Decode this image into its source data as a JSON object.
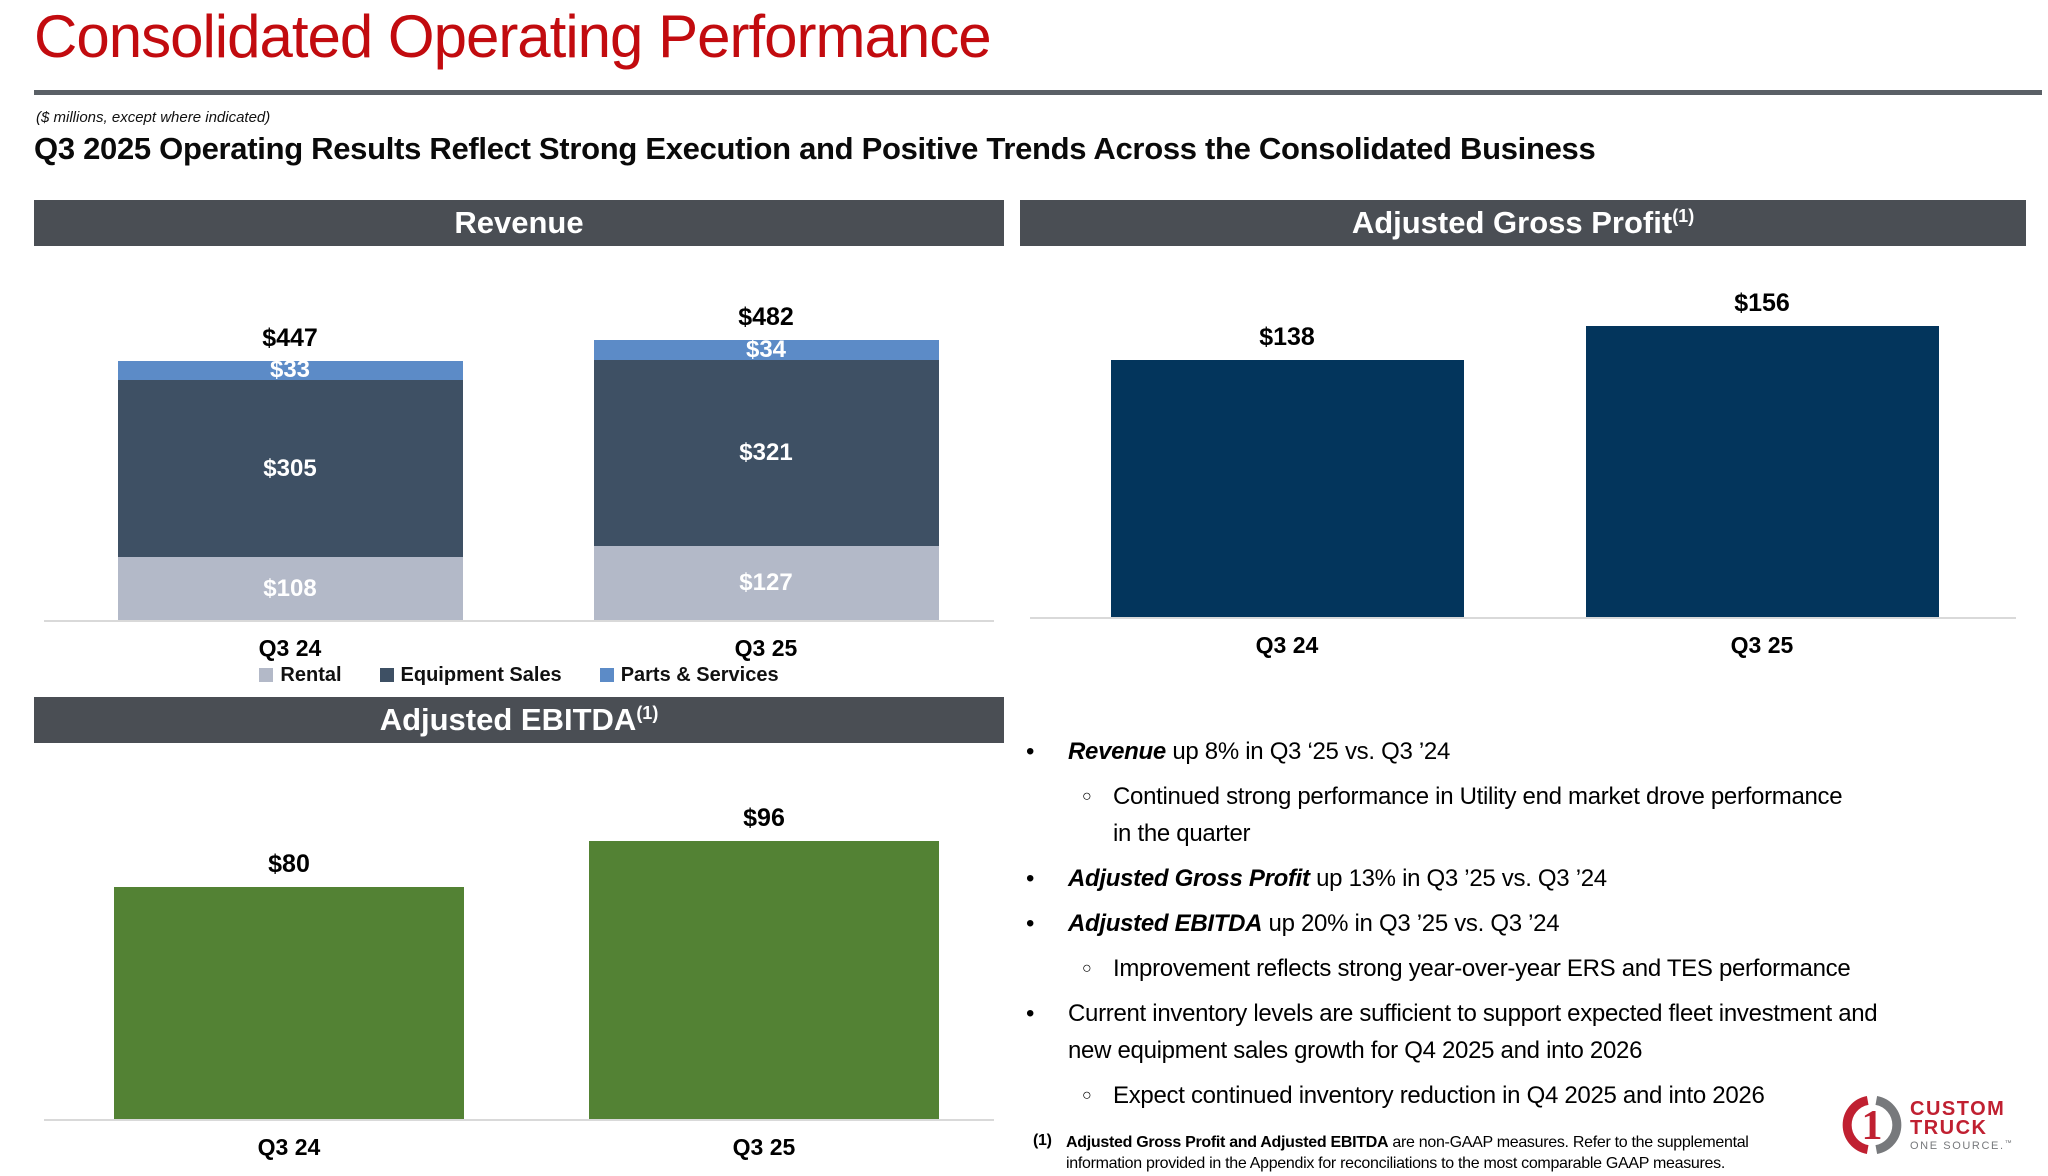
{
  "header": {
    "title": "Consolidated Operating Performance",
    "units_note": "($ millions, except where indicated)",
    "subtitle": "Q3 2025 Operating Results Reflect Strong Execution and Positive Trends Across the Consolidated Business"
  },
  "colors": {
    "accent_red": "#c20b0f",
    "header_bar": "#4a4e54",
    "navy": "#03355c",
    "green": "#538234",
    "rental_gray": "#b3b9c8",
    "equipment_slate": "#3e5064",
    "parts_blue": "#5c8bc7",
    "logo_red": "#c02031",
    "logo_gray": "#77797c"
  },
  "chart_data": [
    {
      "id": "revenue",
      "type": "bar",
      "stacked": true,
      "title": "Revenue",
      "title_superscript": "",
      "categories": [
        "Q3 24",
        "Q3 25"
      ],
      "series": [
        {
          "name": "Rental",
          "color": "#b3b9c8",
          "values": [
            108,
            127
          ],
          "labels": [
            "$108",
            "$127"
          ]
        },
        {
          "name": "Equipment Sales",
          "color": "#3e5064",
          "values": [
            305,
            321
          ],
          "labels": [
            "$305",
            "$321"
          ]
        },
        {
          "name": "Parts & Services",
          "color": "#5c8bc7",
          "values": [
            33,
            34
          ],
          "labels": [
            "$33",
            "$34"
          ]
        }
      ],
      "totals": [
        447,
        482
      ],
      "total_labels": [
        "$447",
        "$482"
      ],
      "legend_position": "bottom",
      "show_legend": true,
      "ylim": [
        0,
        500
      ],
      "grid": false
    },
    {
      "id": "adjusted-gross-profit",
      "type": "bar",
      "stacked": false,
      "title": "Adjusted Gross Profit",
      "title_superscript": "(1)",
      "categories": [
        "Q3 24",
        "Q3 25"
      ],
      "series": [
        {
          "name": "Adjusted Gross Profit",
          "color": "#03355c",
          "values": [
            138,
            156
          ],
          "labels": [
            "$138",
            "$156"
          ]
        }
      ],
      "show_legend": false,
      "ylim": [
        0,
        170
      ],
      "grid": false
    },
    {
      "id": "adjusted-ebitda",
      "type": "bar",
      "stacked": false,
      "title": "Adjusted EBITDA",
      "title_superscript": "(1)",
      "categories": [
        "Q3 24",
        "Q3 25"
      ],
      "series": [
        {
          "name": "Adjusted EBITDA",
          "color": "#538234",
          "values": [
            80,
            96
          ],
          "labels": [
            "$80",
            "$96"
          ]
        }
      ],
      "show_legend": false,
      "ylim": [
        0,
        110
      ],
      "grid": false
    }
  ],
  "bullet_markers": {
    "level1": "•",
    "level2": "○"
  },
  "bullets": [
    {
      "level": 1,
      "lead": "Revenue",
      "lines": [
        " up 8% in Q3 ‘25 vs. Q3 ’24"
      ]
    },
    {
      "level": 2,
      "lead": "",
      "lines": [
        "Continued strong performance in Utility end market drove performance",
        "in the quarter"
      ]
    },
    {
      "level": 1,
      "lead": "Adjusted Gross Profit",
      "lines": [
        " up 13% in Q3 ’25 vs. Q3 ’24"
      ]
    },
    {
      "level": 1,
      "lead": "Adjusted EBITDA",
      "lines": [
        " up 20% in Q3 ’25 vs. Q3 ’24"
      ]
    },
    {
      "level": 2,
      "lead": "",
      "lines": [
        "Improvement reflects strong year-over-year ERS and TES performance"
      ]
    },
    {
      "level": 1,
      "lead": "",
      "lines": [
        "Current inventory levels are sufficient to support expected fleet investment and",
        "new equipment sales growth for Q4 2025 and into 2026"
      ]
    },
    {
      "level": 2,
      "lead": "",
      "lines": [
        "Expect continued inventory reduction in Q4 2025 and into 2026"
      ]
    }
  ],
  "footnote": {
    "marker": "(1)",
    "bold_lead": "Adjusted Gross Profit and Adjusted EBITDA",
    "rest_line1": " are non-GAAP measures. Refer to the supplemental",
    "line2": "information provided in the Appendix for reconciliations to the most comparable GAAP measures."
  },
  "logo": {
    "icon_digit": "1",
    "name_line1": "CUSTOM",
    "name_line2": "TRUCK",
    "tagline": "ONE SOURCE.",
    "trademark": "™"
  }
}
